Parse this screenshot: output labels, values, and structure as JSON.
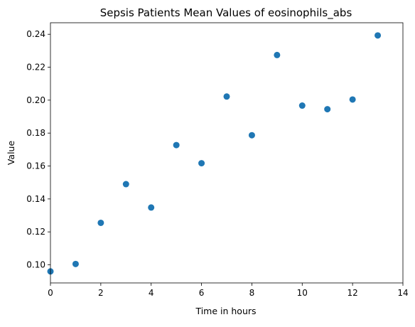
{
  "chart_data": {
    "type": "scatter",
    "title": "Sepsis Patients Mean Values of eosinophils_abs",
    "xlabel": "Time in hours",
    "ylabel": "Value",
    "xlim": [
      0,
      14
    ],
    "ylim": [
      0.089,
      0.247
    ],
    "xticks": [
      0,
      2,
      4,
      6,
      8,
      10,
      12,
      14
    ],
    "yticks": [
      0.1,
      0.12,
      0.14,
      0.16,
      0.18,
      0.2,
      0.22,
      0.24
    ],
    "xtick_labels": [
      "0",
      "2",
      "4",
      "6",
      "8",
      "10",
      "12",
      "14"
    ],
    "ytick_labels": [
      "0.10",
      "0.12",
      "0.14",
      "0.16",
      "0.18",
      "0.20",
      "0.22",
      "0.24"
    ],
    "grid": false,
    "marker_color": "#1f77b4",
    "x": [
      0,
      1,
      2,
      3,
      4,
      5,
      6,
      7,
      8,
      9,
      10,
      11,
      12,
      13
    ],
    "y": [
      0.096,
      0.1005,
      0.1255,
      0.149,
      0.1348,
      0.1727,
      0.1617,
      0.2022,
      0.1787,
      0.2274,
      0.1967,
      0.1945,
      0.2004,
      0.2393
    ]
  }
}
